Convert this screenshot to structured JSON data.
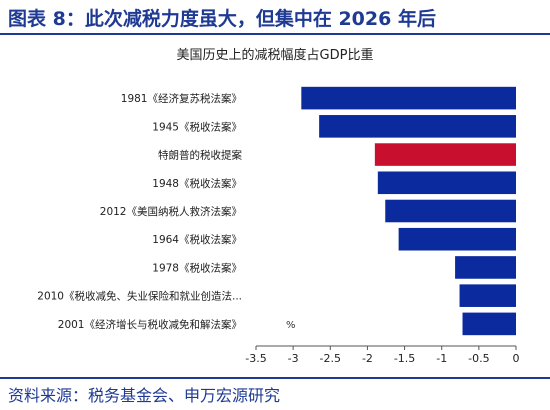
{
  "figure_title": "图表 8：此次减税力度虽大，但集中在 2026 年后",
  "source": "资料来源：税务基金会、申万宏源研究",
  "colors": {
    "primary": "#0a2a9e",
    "highlight": "#c8102e",
    "title": "#1f3a93"
  },
  "chart_data": {
    "type": "bar",
    "orientation": "horizontal",
    "title": "美国历史上的减税幅度占GDP比重",
    "unit_label": "%",
    "categories": [
      "1981《经济复苏税法案》",
      "1945《税收法案》",
      "特朗普的税收提案",
      "1948《税收法案》",
      "2012《美国纳税人救济法案》",
      "1964《税收法案》",
      "1978《税收法案》",
      "2010《税收减免、失业保险和就业创造法...",
      "2001《经济增长与税收减免和解法案》"
    ],
    "values": [
      -2.89,
      -2.65,
      -1.9,
      -1.86,
      -1.76,
      -1.58,
      -0.82,
      -0.76,
      -0.72
    ],
    "highlight_index": 2,
    "xlim": [
      -3.5,
      0
    ],
    "xticks": [
      "-3.5",
      "-3",
      "-2.5",
      "-2",
      "-1.5",
      "-1",
      "-0.5",
      "0"
    ],
    "grid": false
  }
}
